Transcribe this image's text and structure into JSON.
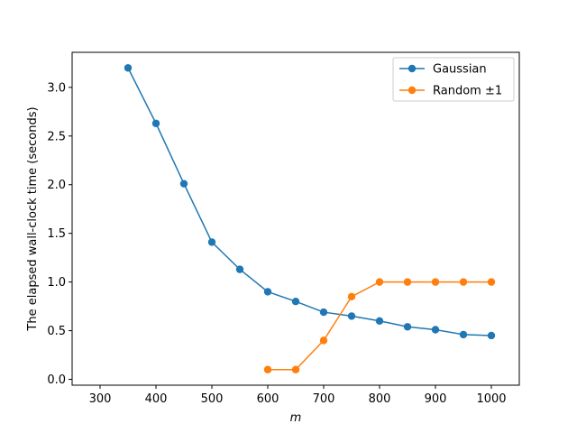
{
  "chart_data": {
    "type": "line",
    "xlabel": "m",
    "ylabel": "The elapsed wall-clock time (seconds)",
    "xlim": [
      250,
      1050
    ],
    "ylim": [
      -0.06,
      3.36
    ],
    "xticks": [
      300,
      400,
      500,
      600,
      700,
      800,
      900,
      1000
    ],
    "xtick_labels": [
      "300",
      "400",
      "500",
      "600",
      "700",
      "800",
      "900",
      "1000"
    ],
    "yticks": [
      0.0,
      0.5,
      1.0,
      1.5,
      2.0,
      2.5,
      3.0
    ],
    "ytick_labels": [
      "0.0",
      "0.5",
      "1.0",
      "1.5",
      "2.0",
      "2.5",
      "3.0"
    ],
    "grid": false,
    "legend_position": "top-right",
    "series": [
      {
        "name": "Gaussian",
        "color": "#1f77b4",
        "marker": "circle",
        "x": [
          350,
          400,
          450,
          500,
          550,
          600,
          650,
          700,
          750,
          800,
          850,
          900,
          950,
          1000
        ],
        "y": [
          3.2,
          2.63,
          2.01,
          1.41,
          1.13,
          0.9,
          0.8,
          0.69,
          0.65,
          0.6,
          0.54,
          0.51,
          0.46,
          0.45
        ]
      },
      {
        "name": "Random ±1",
        "color": "#ff7f0e",
        "marker": "circle",
        "x": [
          600,
          650,
          700,
          750,
          800,
          850,
          900,
          950,
          1000
        ],
        "y": [
          0.1,
          0.1,
          0.4,
          0.85,
          1.0,
          1.0,
          1.0,
          1.0,
          1.0
        ]
      }
    ]
  }
}
